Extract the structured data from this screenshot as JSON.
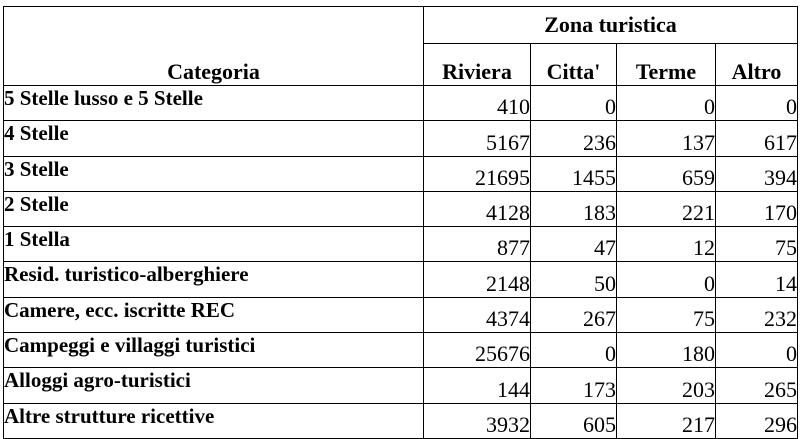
{
  "table": {
    "group_header": "Zona turistica",
    "category_header": "Categoria",
    "columns": [
      "Riviera",
      "Citta'",
      "Terme",
      "Altro"
    ],
    "rows": [
      {
        "category": "5 Stelle lusso e 5 Stelle",
        "values": [
          "410",
          "0",
          "0",
          "0"
        ]
      },
      {
        "category": "4 Stelle",
        "values": [
          "5167",
          "236",
          "137",
          "617"
        ]
      },
      {
        "category": "3 Stelle",
        "values": [
          "21695",
          "1455",
          "659",
          "394"
        ]
      },
      {
        "category": "2 Stelle",
        "values": [
          "4128",
          "183",
          "221",
          "170"
        ]
      },
      {
        "category": "1 Stella",
        "values": [
          "877",
          "47",
          "12",
          "75"
        ]
      },
      {
        "category": "Resid. turistico-alberghiere",
        "values": [
          "2148",
          "50",
          "0",
          "14"
        ]
      },
      {
        "category": "Camere, ecc. iscritte REC",
        "values": [
          "4374",
          "267",
          "75",
          "232"
        ]
      },
      {
        "category": "Campeggi e villaggi turistici",
        "values": [
          "25676",
          "0",
          "180",
          "0"
        ]
      },
      {
        "category": "Alloggi agro-turistici",
        "values": [
          "144",
          "173",
          "203",
          "265"
        ]
      },
      {
        "category": "Altre strutture ricettive",
        "values": [
          "3932",
          "605",
          "217",
          "296"
        ]
      }
    ]
  }
}
